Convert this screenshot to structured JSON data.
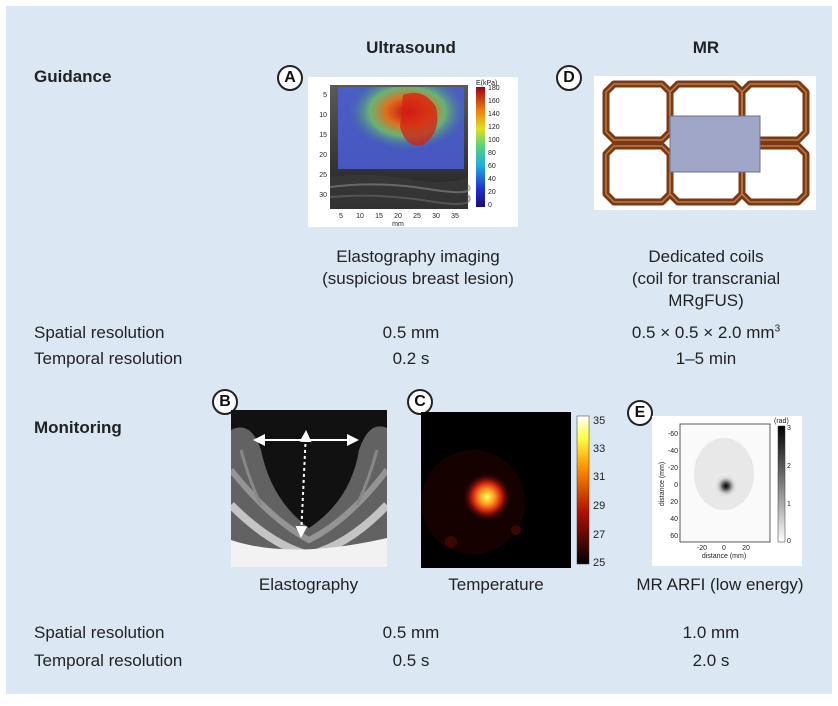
{
  "columns": {
    "ultrasound": "Ultrasound",
    "mr": "MR"
  },
  "sections": {
    "guidance": "Guidance",
    "monitoring": "Monitoring"
  },
  "markers": {
    "a": "A",
    "b": "B",
    "c": "C",
    "d": "D",
    "e": "E"
  },
  "guidance": {
    "us_caption": [
      "Elastography imaging",
      "(suspicious breast lesion)"
    ],
    "mr_caption": [
      "Dedicated coils",
      "(coil for transcranial",
      "MRgFUS)"
    ],
    "rows": [
      {
        "label": "Spatial resolution",
        "us": "0.5 mm",
        "mr_base": "0.5 × 0.5 × 2.0 mm",
        "mr_sup": "3"
      },
      {
        "label": "Temporal resolution",
        "us": "0.2 s",
        "mr": "1–5 min"
      }
    ]
  },
  "monitoring": {
    "captions": {
      "b": "Elastography",
      "c": "Temperature",
      "e": "MR ARFI (low energy)"
    },
    "rows": [
      {
        "label": "Spatial resolution",
        "us": "0.5 mm",
        "mr": "1.0 mm"
      },
      {
        "label": "Temporal resolution",
        "us": "0.5 s",
        "mr": "2.0 s"
      }
    ]
  },
  "panel_a": {
    "colorbar_title": "E(kPa)",
    "colorbar_ticks": [
      "180",
      "160",
      "140",
      "120",
      "100",
      "80",
      "60",
      "40",
      "20",
      "0"
    ],
    "y_ticks": [
      "5",
      "10",
      "15",
      "20",
      "25",
      "30"
    ],
    "x_ticks": [
      "5",
      "10",
      "15",
      "20",
      "25",
      "30",
      "35"
    ],
    "x_unit": "mm"
  },
  "panel_c": {
    "colorbar_ticks": [
      "35",
      "33",
      "31",
      "29",
      "27",
      "25"
    ]
  },
  "panel_e": {
    "colorbar_title": "(rad)",
    "colorbar_ticks": [
      "3",
      "2",
      "1",
      "0"
    ],
    "y_ticks": [
      "-60",
      "-40",
      "-20",
      "0",
      "20",
      "40",
      "60"
    ],
    "x_ticks": [
      "-20",
      "0",
      "20"
    ],
    "xlabel": "distance (mm)",
    "ylabel": "distance (mm)"
  },
  "colors": {
    "background": "#dbe8f4",
    "coil_frame": "#7a3a14",
    "coil_pad": "#9fa6c7"
  }
}
